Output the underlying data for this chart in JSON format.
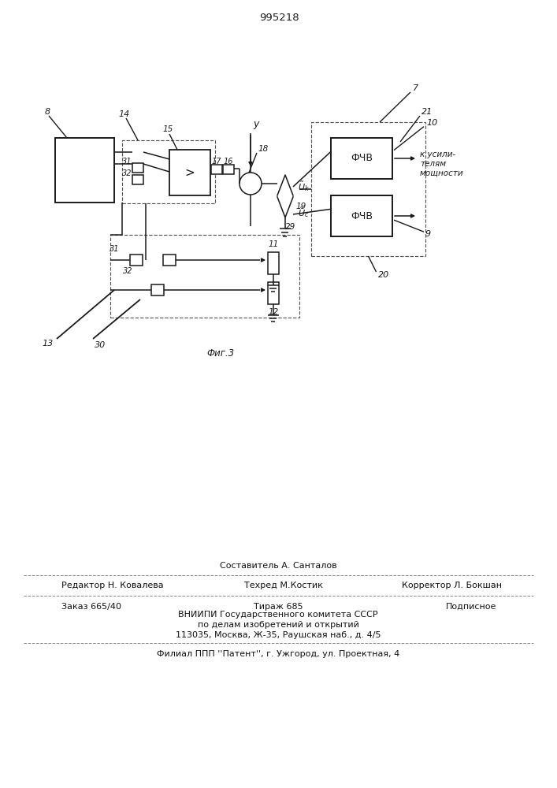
{
  "bg": "#ffffff",
  "lc": "#1a1a1a",
  "patent": "995218",
  "sestavitel": "Составитель А. Санталов",
  "redaktor": "Редактор Н. Ковалева",
  "tehred": "Техред М.Костик",
  "korrektor": "Корректор Л. Бокшан",
  "zakaz": "Заказ 665/40",
  "tirazh": "Тираж 685",
  "podpisnoe": "Подписное",
  "vniipи_1": "ВНИИПИ Государственного комитета СССР",
  "vniipи_2": "по делам изобретений и открытий",
  "vniipи_3": "113035, Москва, Ж-35, Раушская наб., д. 4/5",
  "filial": "Филиал ППП ''Патент'', г. Ужгород, ул. Проектная, 4",
  "k_usilitelyam": "к усили-\nтелям\nмощности"
}
